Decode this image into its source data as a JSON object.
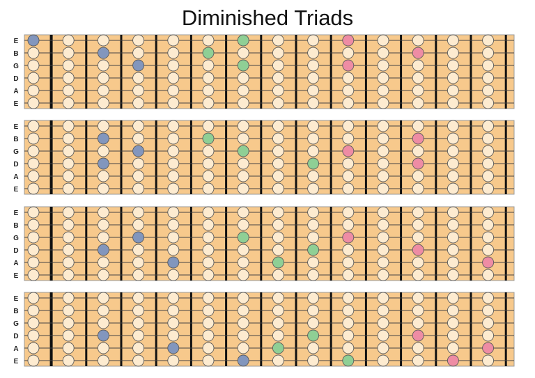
{
  "title": "Diminished Triads",
  "string_labels": [
    "E",
    "B",
    "G",
    "D",
    "A",
    "E"
  ],
  "colors": {
    "board": "#f7c98c",
    "empty_dot": "#fdebd0",
    "root": "#8296bd",
    "third": "#8fcf95",
    "fifth": "#ee8ca4"
  },
  "diagrams": [
    {
      "dots": [
        {
          "string": 0,
          "pos": 0,
          "role": "root"
        },
        {
          "string": 1,
          "pos": 2,
          "role": "root"
        },
        {
          "string": 2,
          "pos": 3,
          "role": "root"
        },
        {
          "string": 1,
          "pos": 5,
          "role": "third"
        },
        {
          "string": 0,
          "pos": 6,
          "role": "third"
        },
        {
          "string": 2,
          "pos": 6,
          "role": "third"
        },
        {
          "string": 0,
          "pos": 9,
          "role": "fifth"
        },
        {
          "string": 2,
          "pos": 9,
          "role": "fifth"
        },
        {
          "string": 1,
          "pos": 11,
          "role": "fifth"
        }
      ]
    },
    {
      "dots": [
        {
          "string": 1,
          "pos": 2,
          "role": "root"
        },
        {
          "string": 3,
          "pos": 2,
          "role": "root"
        },
        {
          "string": 2,
          "pos": 3,
          "role": "root"
        },
        {
          "string": 1,
          "pos": 5,
          "role": "third"
        },
        {
          "string": 2,
          "pos": 6,
          "role": "third"
        },
        {
          "string": 3,
          "pos": 8,
          "role": "third"
        },
        {
          "string": 2,
          "pos": 9,
          "role": "fifth"
        },
        {
          "string": 1,
          "pos": 11,
          "role": "fifth"
        },
        {
          "string": 3,
          "pos": 11,
          "role": "fifth"
        }
      ]
    },
    {
      "dots": [
        {
          "string": 2,
          "pos": 3,
          "role": "root"
        },
        {
          "string": 3,
          "pos": 2,
          "role": "root"
        },
        {
          "string": 4,
          "pos": 4,
          "role": "root"
        },
        {
          "string": 2,
          "pos": 6,
          "role": "third"
        },
        {
          "string": 3,
          "pos": 8,
          "role": "third"
        },
        {
          "string": 4,
          "pos": 7,
          "role": "third"
        },
        {
          "string": 2,
          "pos": 9,
          "role": "fifth"
        },
        {
          "string": 3,
          "pos": 11,
          "role": "fifth"
        },
        {
          "string": 4,
          "pos": 13,
          "role": "fifth"
        }
      ]
    },
    {
      "dots": [
        {
          "string": 3,
          "pos": 2,
          "role": "root"
        },
        {
          "string": 4,
          "pos": 4,
          "role": "root"
        },
        {
          "string": 5,
          "pos": 6,
          "role": "root"
        },
        {
          "string": 3,
          "pos": 8,
          "role": "third"
        },
        {
          "string": 4,
          "pos": 7,
          "role": "third"
        },
        {
          "string": 5,
          "pos": 9,
          "role": "third"
        },
        {
          "string": 3,
          "pos": 11,
          "role": "fifth"
        },
        {
          "string": 4,
          "pos": 13,
          "role": "fifth"
        },
        {
          "string": 5,
          "pos": 12,
          "role": "fifth"
        }
      ]
    }
  ]
}
